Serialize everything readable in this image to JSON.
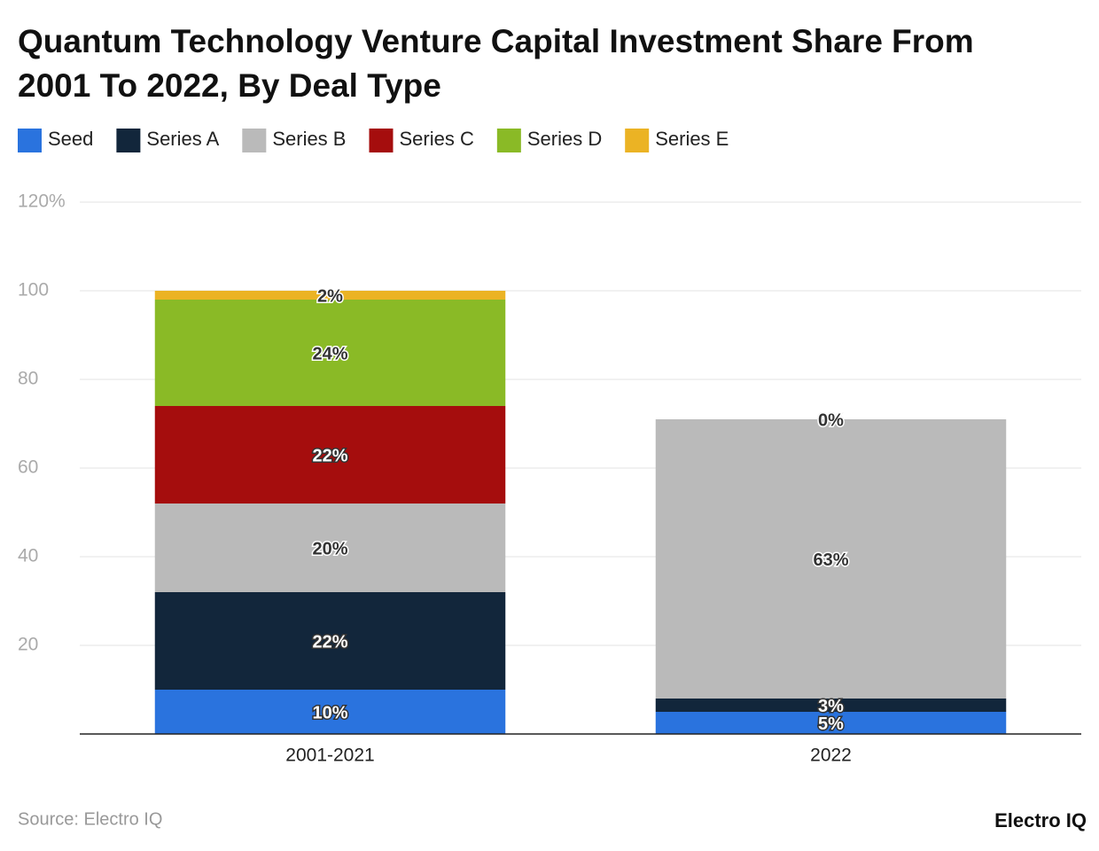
{
  "chart_data": {
    "type": "stacked_bar",
    "title": "Quantum Technology Venture Capital Investment Share From 2001 To 2022, By Deal Type",
    "categories": [
      "2001-2021",
      "2022"
    ],
    "series": [
      {
        "name": "Seed",
        "color": "#2a73de",
        "values": [
          10,
          5
        ],
        "value_labels": [
          "10%",
          "5%"
        ]
      },
      {
        "name": "Series A",
        "color": "#12263b",
        "values": [
          22,
          3
        ],
        "value_labels": [
          "22%",
          "3%"
        ]
      },
      {
        "name": "Series B",
        "color": "#bababa",
        "values": [
          20,
          63
        ],
        "value_labels": [
          "20%",
          "63%"
        ]
      },
      {
        "name": "Series C",
        "color": "#a50d0d",
        "values": [
          22,
          0
        ],
        "value_labels": [
          "22%",
          "0%"
        ]
      },
      {
        "name": "Series D",
        "color": "#8aba26",
        "values": [
          24,
          0
        ],
        "value_labels": [
          "24%",
          "0%"
        ]
      },
      {
        "name": "Series E",
        "color": "#ebb324",
        "values": [
          2,
          0
        ],
        "value_labels": [
          "2%",
          "0%"
        ]
      }
    ],
    "ylim": [
      0,
      120
    ],
    "yticks": [
      20,
      40,
      60,
      80,
      100,
      {
        "value": 120,
        "label": "120%"
      }
    ],
    "grid": true,
    "source": "Source: Electro IQ",
    "brand": "Electro IQ"
  }
}
